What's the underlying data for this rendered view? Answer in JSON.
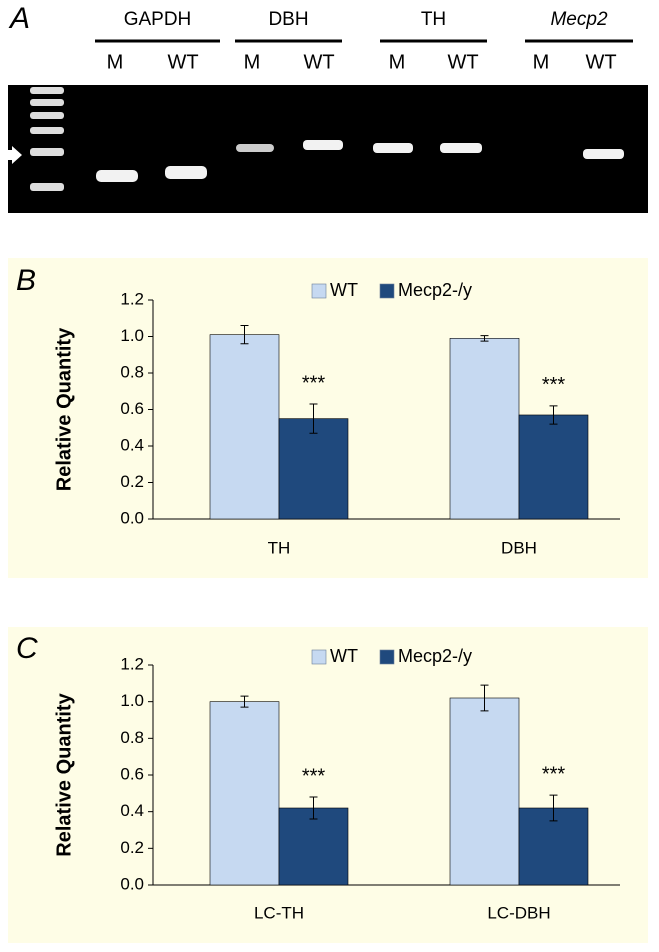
{
  "gel": {
    "panel": "A",
    "groups": [
      {
        "name": "GAPDH",
        "lanes": [
          "M",
          "WT"
        ]
      },
      {
        "name": "DBH",
        "lanes": [
          "M",
          "WT"
        ]
      },
      {
        "name": "TH",
        "lanes": [
          "M",
          "WT"
        ]
      },
      {
        "name": "Mecp2",
        "lanes": [
          "M",
          "WT"
        ]
      }
    ]
  },
  "chart_data": [
    {
      "type": "bar",
      "panel": "B",
      "y_label": "Relative Quantity",
      "categories": [
        "TH",
        "DBH"
      ],
      "series": [
        {
          "name": "WT",
          "color": "#c6d9f1",
          "values": [
            1.01,
            0.99
          ],
          "errors": [
            0.05,
            0.015
          ]
        },
        {
          "name": "Mecp2-/y",
          "color": "#1f497d",
          "values": [
            0.55,
            0.57
          ],
          "errors": [
            0.08,
            0.05
          ],
          "annotations": [
            "***",
            "***"
          ]
        }
      ],
      "ylim": [
        0,
        1.2
      ],
      "yticks": [
        {
          "value": 0,
          "label": "0.0"
        },
        0.2,
        0.4,
        0.6,
        0.8,
        {
          "value": 1,
          "label": "1.0"
        },
        1.2
      ],
      "legend": "top"
    },
    {
      "type": "bar",
      "panel": "C",
      "y_label": "Relative Quantity",
      "categories": [
        "LC-TH",
        "LC-DBH"
      ],
      "series": [
        {
          "name": "WT",
          "color": "#c6d9f1",
          "values": [
            1.0,
            1.02
          ],
          "errors": [
            0.03,
            0.07
          ]
        },
        {
          "name": "Mecp2-/y",
          "color": "#1f497d",
          "values": [
            0.42,
            0.42
          ],
          "errors": [
            0.06,
            0.07
          ],
          "annotations": [
            "***",
            "***"
          ]
        }
      ],
      "ylim": [
        0,
        1.2
      ],
      "yticks": [
        {
          "value": 0,
          "label": "0.0"
        },
        0.2,
        0.4,
        0.6,
        0.8,
        {
          "value": 1,
          "label": "1.0"
        },
        1.2
      ],
      "legend": "top"
    }
  ]
}
